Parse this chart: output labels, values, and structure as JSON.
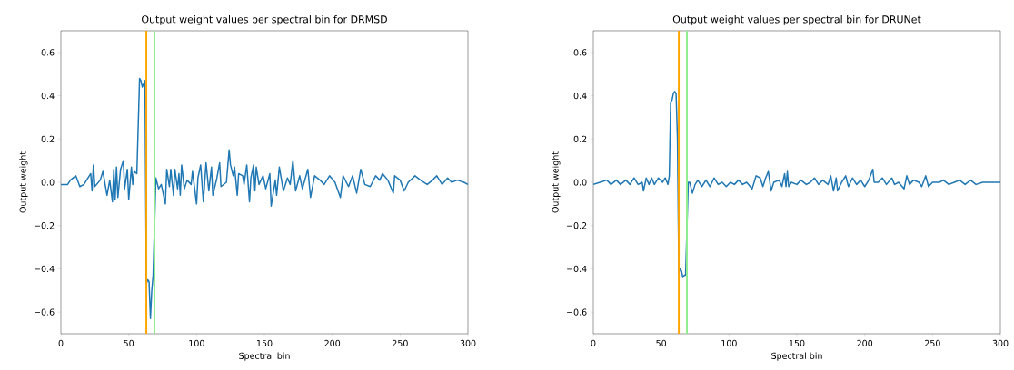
{
  "chart_data": [
    {
      "type": "line",
      "title": "Output weight values per spectral bin for DRMSD",
      "xlabel": "Spectral bin",
      "ylabel": "Output weight",
      "x": [
        0,
        5,
        7,
        11,
        14,
        17,
        22,
        23,
        24,
        25,
        29,
        31,
        34,
        36,
        38,
        39,
        40,
        41,
        42,
        44,
        46,
        47,
        49,
        50,
        52,
        53,
        54,
        56,
        58,
        59,
        60,
        62,
        63,
        64,
        65,
        66,
        67,
        68,
        70,
        72,
        74,
        77,
        78,
        80,
        81,
        83,
        84,
        86,
        87,
        88,
        89,
        91,
        93,
        96,
        97,
        100,
        101,
        103,
        105,
        107,
        109,
        111,
        112,
        115,
        117,
        118,
        122,
        124,
        125,
        127,
        128,
        130,
        131,
        134,
        135,
        137,
        139,
        140,
        142,
        143,
        144,
        146,
        149,
        151,
        154,
        155,
        158,
        159,
        161,
        164,
        167,
        169,
        171,
        173,
        176,
        178,
        182,
        184,
        187,
        191,
        194,
        198,
        202,
        206,
        208,
        212,
        215,
        218,
        221,
        224,
        228,
        232,
        235,
        237,
        241,
        245,
        246,
        250,
        253,
        256,
        261,
        265,
        270,
        274,
        277,
        281,
        285,
        288,
        292,
        297,
        300
      ],
      "series": [
        {
          "color": "#1f77b4",
          "values": [
            -0.01,
            -0.01,
            0.01,
            0.03,
            -0.02,
            -0.01,
            0.04,
            -0.04,
            0.08,
            -0.02,
            0.01,
            0.05,
            -0.06,
            0.01,
            -0.09,
            0.06,
            -0.08,
            0.07,
            -0.07,
            0.06,
            0.1,
            -0.03,
            0.06,
            -0.08,
            0.07,
            -0.01,
            0.05,
            0.04,
            0.48,
            0.47,
            0.44,
            0.47,
            -0.47,
            -0.45,
            -0.46,
            -0.63,
            -0.5,
            -0.43,
            0.02,
            -0.03,
            -0.01,
            -0.1,
            0.06,
            -0.02,
            0.06,
            -0.06,
            0.06,
            -0.03,
            0.04,
            -0.06,
            0.08,
            -0.03,
            0.01,
            -0.01,
            0.05,
            -0.1,
            0.02,
            0.08,
            -0.09,
            0.09,
            -0.04,
            0.07,
            -0.06,
            0.02,
            0.09,
            -0.02,
            0,
            0.15,
            0.08,
            0.03,
            0.07,
            -0.06,
            0.04,
            0.03,
            -0.01,
            0.08,
            -0.09,
            0.02,
            0.08,
            -0.04,
            0.07,
            -0.01,
            0.03,
            -0.03,
            0.04,
            -0.11,
            0.01,
            -0.06,
            0.07,
            -0.04,
            0.02,
            -0.01,
            0.1,
            -0.04,
            0.03,
            -0.03,
            0.06,
            -0.07,
            0.03,
            0.01,
            -0.01,
            0.03,
            0,
            -0.07,
            0.03,
            -0.02,
            0.03,
            -0.05,
            0.06,
            -0.01,
            -0.02,
            0.03,
            0.01,
            0.04,
            0.01,
            -0.05,
            0.03,
            0.01,
            -0.04,
            0,
            0.03,
            0.01,
            -0.01,
            0.01,
            0.03,
            -0.01,
            0.02,
            0,
            0.01,
            0,
            -0.01
          ]
        }
      ],
      "xlim": [
        0,
        300
      ],
      "ylim": [
        -0.7,
        0.7
      ],
      "xticks": [
        0,
        50,
        100,
        150,
        200,
        250,
        300
      ],
      "yticks": [
        {
          "value": -0.6,
          "label": "−0.6"
        },
        {
          "value": -0.4,
          "label": "−0.4"
        },
        {
          "value": -0.2,
          "label": "−0.2"
        },
        {
          "value": 0,
          "label": "0.0"
        },
        {
          "value": 0.2,
          "label": "0.2"
        },
        {
          "value": 0.4,
          "label": "0.4"
        },
        {
          "value": 0.6,
          "label": "0.6"
        }
      ],
      "ref_lines": [
        {
          "axis": "x",
          "value": 63,
          "color": "#ffa500"
        },
        {
          "axis": "x",
          "value": 69,
          "color": "#90ee90"
        }
      ]
    },
    {
      "type": "line",
      "title": "Output weight values per spectral bin for DRUNet",
      "xlabel": "Spectral bin",
      "ylabel": "Output weight",
      "x": [
        0,
        5,
        10,
        13,
        17,
        20,
        24,
        27,
        30,
        33,
        36,
        37,
        39,
        41,
        43,
        45,
        48,
        51,
        53,
        55,
        56,
        57,
        58,
        59,
        60,
        61,
        62,
        63,
        64,
        65,
        66,
        67,
        68,
        70,
        71,
        73,
        75,
        77,
        80,
        83,
        86,
        89,
        92,
        95,
        98,
        101,
        104,
        107,
        110,
        113,
        117,
        120,
        123,
        125,
        127,
        129,
        131,
        133,
        137,
        139,
        141,
        142,
        143,
        144,
        146,
        150,
        153,
        157,
        160,
        163,
        166,
        169,
        173,
        175,
        177,
        179,
        180,
        183,
        186,
        188,
        191,
        194,
        197,
        200,
        203,
        206,
        207,
        210,
        213,
        216,
        220,
        222,
        225,
        229,
        231,
        233,
        236,
        240,
        242,
        245,
        247,
        250,
        255,
        258,
        262,
        266,
        270,
        274,
        278,
        282,
        287,
        292,
        296,
        300
      ],
      "series": [
        {
          "color": "#1f77b4",
          "values": [
            -0.01,
            0,
            0.01,
            -0.01,
            0.01,
            -0.01,
            0.01,
            -0.01,
            0.02,
            -0.01,
            0,
            -0.04,
            0.02,
            -0.01,
            0.02,
            -0.01,
            0.02,
            0,
            0.02,
            -0.01,
            0.03,
            0.37,
            0.38,
            0.41,
            0.42,
            0.41,
            0.2,
            -0.42,
            -0.4,
            -0.41,
            -0.44,
            -0.43,
            -0.43,
            0,
            0,
            -0.05,
            -0.01,
            0.01,
            -0.02,
            0.01,
            -0.02,
            0.02,
            -0.01,
            0,
            -0.02,
            0,
            -0.01,
            0.01,
            -0.01,
            0,
            -0.03,
            0.03,
            0.02,
            -0.02,
            0.02,
            0.05,
            -0.04,
            0,
            0.01,
            -0.02,
            0.04,
            -0.02,
            0.05,
            -0.02,
            0,
            -0.01,
            0.01,
            -0.01,
            0,
            0.02,
            -0.01,
            0.01,
            -0.01,
            0.03,
            -0.04,
            0.02,
            -0.04,
            0,
            0.03,
            -0.02,
            0.02,
            -0.01,
            0.01,
            -0.02,
            0.01,
            0.06,
            0,
            0,
            0.02,
            -0.01,
            0.02,
            -0.01,
            0,
            -0.03,
            0.03,
            -0.01,
            0.01,
            0,
            -0.02,
            0.03,
            -0.02,
            0,
            0,
            0.01,
            -0.01,
            0,
            0.01,
            -0.01,
            0.01,
            -0.01,
            0,
            0,
            0,
            0
          ]
        }
      ],
      "xlim": [
        0,
        300
      ],
      "ylim": [
        -0.7,
        0.7
      ],
      "xticks": [
        0,
        50,
        100,
        150,
        200,
        250,
        300
      ],
      "yticks": [
        {
          "value": -0.6,
          "label": "−0.6"
        },
        {
          "value": -0.4,
          "label": "−0.4"
        },
        {
          "value": -0.2,
          "label": "−0.2"
        },
        {
          "value": 0,
          "label": "0.0"
        },
        {
          "value": 0.2,
          "label": "0.2"
        },
        {
          "value": 0.4,
          "label": "0.4"
        },
        {
          "value": 0.6,
          "label": "0.6"
        }
      ],
      "ref_lines": [
        {
          "axis": "x",
          "value": 63,
          "color": "#ffa500"
        },
        {
          "axis": "x",
          "value": 69,
          "color": "#90ee90"
        }
      ]
    }
  ]
}
